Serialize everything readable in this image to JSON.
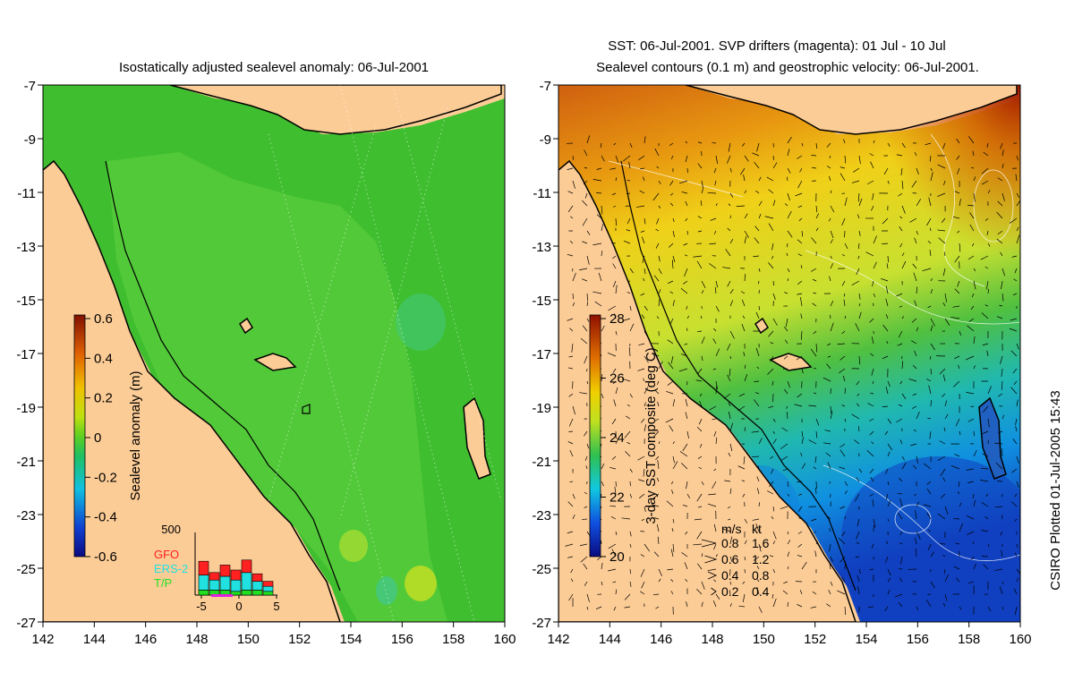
{
  "left_panel": {
    "title": "Isostatically adjusted sealevel anomaly: 06-Jul-2001",
    "y_ticks": [
      "-7",
      "-9",
      "-11",
      "-13",
      "-15",
      "-17",
      "-19",
      "-21",
      "-23",
      "-25",
      "-27"
    ],
    "x_ticks": [
      "142",
      "144",
      "146",
      "148",
      "150",
      "152",
      "154",
      "156",
      "158",
      "160"
    ],
    "colorbar": {
      "label": "Sealevel anomaly (m)",
      "ticks": [
        "0.6",
        "0.4",
        "0.2",
        "0",
        "-0.2",
        "-0.4",
        "-0.6"
      ]
    },
    "inset": {
      "ymax_label": "500",
      "legend": [
        {
          "name": "GFO",
          "color": "#ff2020"
        },
        {
          "name": "ERS-2",
          "color": "#20e0e0"
        },
        {
          "name": "T/P",
          "color": "#20e020"
        }
      ],
      "x_ticks": [
        "-5",
        "0",
        "5"
      ],
      "bars": [
        {
          "tp": 40,
          "ers": 120,
          "gfo": 110
        },
        {
          "tp": 40,
          "ers": 80,
          "gfo": 60
        },
        {
          "tp": 40,
          "ers": 110,
          "gfo": 90
        },
        {
          "tp": 30,
          "ers": 90,
          "gfo": 80
        },
        {
          "tp": 40,
          "ers": 140,
          "gfo": 100
        },
        {
          "tp": 40,
          "ers": 70,
          "gfo": 60
        },
        {
          "tp": 30,
          "ers": 40,
          "gfo": 40
        }
      ]
    }
  },
  "right_panel": {
    "title_line1": "SST: 06-Jul-2001. SVP drifters (magenta): 01 Jul - 10 Jul",
    "title_line2": "Sealevel contours (0.1 m) and geostrophic velocity: 06-Jul-2001.",
    "y_ticks": [
      "-7",
      "-9",
      "-11",
      "-13",
      "-15",
      "-17",
      "-19",
      "-21",
      "-23",
      "-25",
      "-27"
    ],
    "x_ticks": [
      "142",
      "144",
      "146",
      "148",
      "150",
      "152",
      "154",
      "156",
      "158",
      "160"
    ],
    "colorbar": {
      "label": "3-day SST composite (deg C)",
      "ticks": [
        "28",
        "26",
        "24",
        "22",
        "20"
      ]
    },
    "velocity_key": {
      "header_ms": "m/s",
      "header_kt": "kt",
      "rows": [
        {
          "ms": "0.8",
          "kt": "1.6"
        },
        {
          "ms": "0.6",
          "kt": "1.2"
        },
        {
          "ms": "0.4",
          "kt": "0.8"
        },
        {
          "ms": "0.2",
          "kt": "0.4"
        }
      ]
    }
  },
  "footer_credit": "CSIRO Plotted 01-Jul-2005 15:43",
  "colors": {
    "land": "#fccc96",
    "ssh_ocean": "#3fbe2f",
    "ssh_shelf": "#52cc3a",
    "coast": "#000000"
  }
}
